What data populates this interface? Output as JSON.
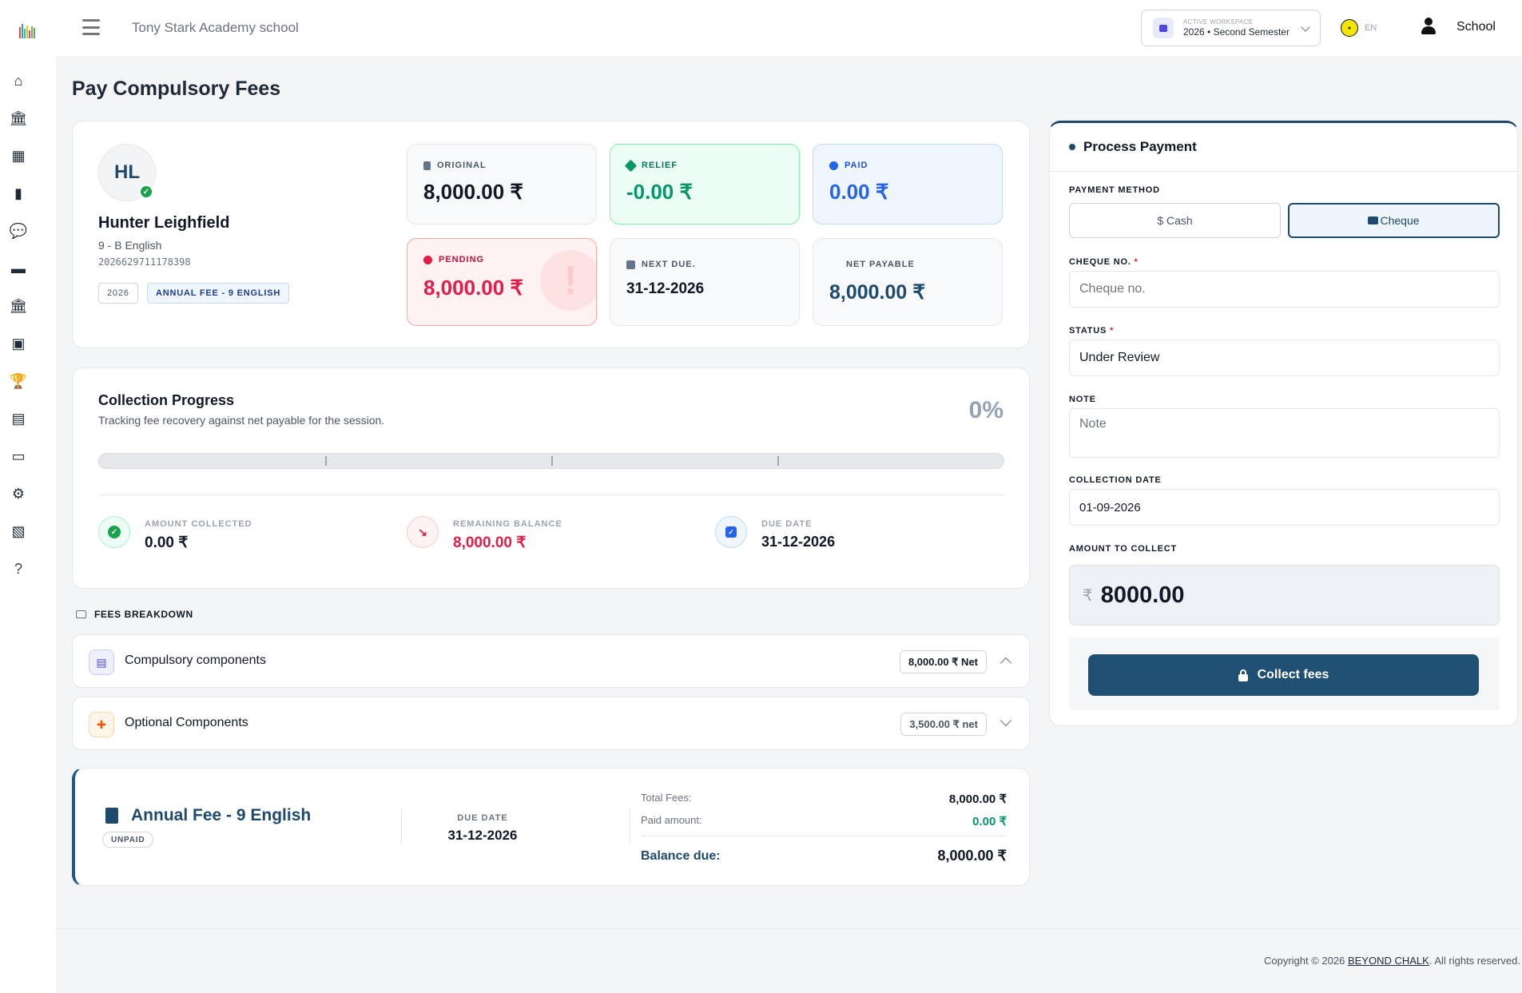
{
  "header": {
    "school_name": "Tony Stark Academy school",
    "workspace_label": "ACTIVE WORKSPACE",
    "workspace_value": "2026 • Second Semester",
    "language": "EN",
    "user": "School"
  },
  "sidebar": {
    "icons": [
      "home-icon",
      "bank-icon",
      "calendar-icon",
      "clipboard-icon",
      "chat-icon",
      "briefcase-icon",
      "institution-icon",
      "bus-icon",
      "trophy-icon",
      "document-icon",
      "credit-card-icon",
      "gear-icon",
      "money-icon",
      "help-icon"
    ]
  },
  "page": {
    "title": "Pay Compulsory Fees"
  },
  "student": {
    "initials": "HL",
    "name": "Hunter Leighfield",
    "class": "9 - B English",
    "id": "2026629711178398",
    "year": "2026",
    "fee_tag": "ANNUAL FEE - 9 ENGLISH"
  },
  "stats": {
    "original": {
      "label": "ORIGINAL",
      "value": "8,000.00 ₹",
      "color": "#111827"
    },
    "relief": {
      "label": "RELIEF",
      "value": "-0.00 ₹",
      "color": "#059669"
    },
    "paid": {
      "label": "PAID",
      "value": "0.00 ₹",
      "color": "#2563eb"
    },
    "pending": {
      "label": "PENDING",
      "value": "8,000.00 ₹",
      "color": "#e11d48"
    },
    "next_due": {
      "label": "NEXT DUE.",
      "value": "31-12-2026"
    },
    "net_payable": {
      "label": "NET PAYABLE",
      "value": "8,000.00 ₹",
      "color": "#1e4a6e"
    }
  },
  "progress": {
    "title": "Collection Progress",
    "subtitle": "Tracking fee recovery against net payable for the session.",
    "percent_label": "0%",
    "percent": 0,
    "collected_label": "AMOUNT COLLECTED",
    "collected_value": "0.00 ₹",
    "remaining_label": "REMAINING BALANCE",
    "remaining_value": "8,000.00 ₹",
    "due_label": "DUE DATE",
    "due_value": "31-12-2026"
  },
  "breakdown": {
    "section_label": "FEES BREAKDOWN",
    "items": [
      {
        "label": "Compulsory components",
        "badge": "8,000.00 ₹ Net",
        "expanded": true
      },
      {
        "label": "Optional Components",
        "badge": "3,500.00 ₹ net",
        "expanded": false
      }
    ]
  },
  "summary": {
    "title": "Annual Fee - 9 English",
    "status": "UNPAID",
    "due_label": "DUE DATE",
    "due_value": "31-12-2026",
    "total_label": "Total Fees:",
    "total_value": "8,000.00 ₹",
    "paid_label": "Paid amount:",
    "paid_value": "0.00 ₹",
    "balance_label": "Balance due:",
    "balance_value": "8,000.00 ₹"
  },
  "payment": {
    "title": "Process Payment",
    "method_label": "PAYMENT METHOD",
    "cash_label": "$ Cash",
    "cheque_label": "Cheque",
    "selected_method": "Cheque",
    "cheque_no_label": "CHEQUE NO.",
    "cheque_no_placeholder": "Cheque no.",
    "status_label": "STATUS",
    "status_value": "Under Review",
    "note_label": "NOTE",
    "note_placeholder": "Note",
    "date_label": "COLLECTION DATE",
    "date_value": "01-09-2026",
    "amount_label": "AMOUNT TO COLLECT",
    "currency": "₹",
    "amount_value": "8000.00",
    "collect_label": "Collect fees",
    "required_mark": "*"
  },
  "footer": {
    "prefix": "Copyright © 2026 ",
    "brand": "BEYOND CHALK",
    "suffix": ". All rights reserved."
  }
}
